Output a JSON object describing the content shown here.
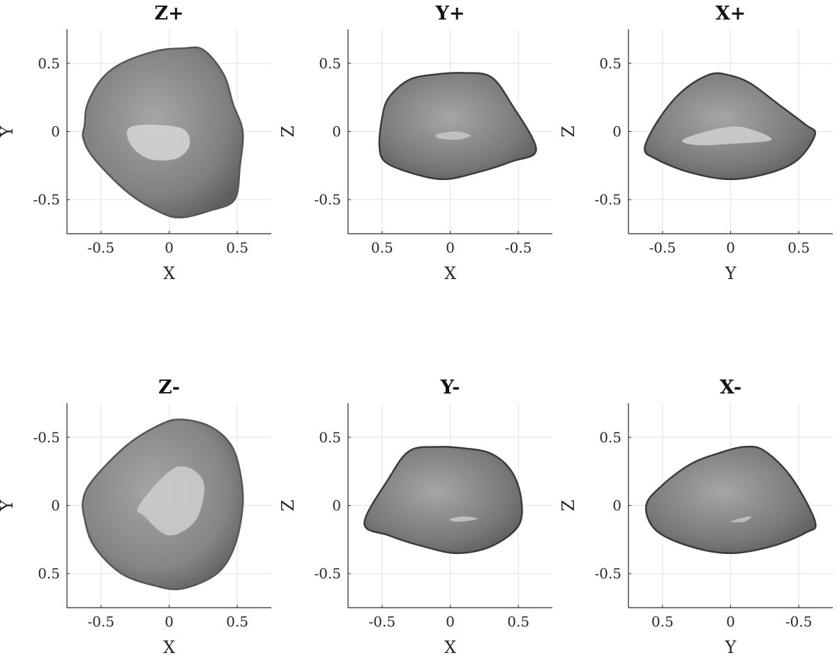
{
  "chart_data": [
    {
      "type": "shape-projection",
      "title": "Z+",
      "xlabel": "X",
      "ylabel": "Y",
      "xlim": [
        -0.75,
        0.75
      ],
      "ylim": [
        -0.75,
        0.75
      ],
      "x_reversed": false,
      "y_reversed": false,
      "xticks": [
        -0.5,
        0,
        0.5
      ],
      "xtick_labels": [
        "-0.5",
        "0",
        "0.5"
      ],
      "yticks": [
        0.5,
        0,
        -0.5
      ],
      "ytick_labels": [
        "0.5",
        "0",
        "-0.5"
      ],
      "grid": true,
      "outline": [
        [
          -0.62,
          0.05
        ],
        [
          -0.6,
          0.2
        ],
        [
          -0.5,
          0.38
        ],
        [
          -0.35,
          0.5
        ],
        [
          -0.1,
          0.59
        ],
        [
          0.1,
          0.61
        ],
        [
          0.25,
          0.6
        ],
        [
          0.4,
          0.42
        ],
        [
          0.47,
          0.2
        ],
        [
          0.54,
          0.0
        ],
        [
          0.52,
          -0.25
        ],
        [
          0.48,
          -0.5
        ],
        [
          0.3,
          -0.58
        ],
        [
          0.1,
          -0.63
        ],
        [
          -0.05,
          -0.6
        ],
        [
          -0.3,
          -0.45
        ],
        [
          -0.55,
          -0.2
        ],
        [
          -0.63,
          -0.05
        ]
      ],
      "highlight": [
        [
          -0.3,
          0.02
        ],
        [
          -0.15,
          0.05
        ],
        [
          0.1,
          0.02
        ],
        [
          0.15,
          -0.1
        ],
        [
          0.05,
          -0.2
        ],
        [
          -0.15,
          -0.2
        ],
        [
          -0.28,
          -0.1
        ]
      ],
      "body_color": "#808080",
      "highlight_color": "#d6d6d6",
      "edge_color": "#555555"
    },
    {
      "type": "shape-projection",
      "title": "Y+",
      "xlabel": "X",
      "ylabel": "Z",
      "xlim": [
        -0.75,
        0.75
      ],
      "ylim": [
        -0.75,
        0.75
      ],
      "x_reversed": true,
      "y_reversed": false,
      "xticks": [
        0.5,
        0,
        -0.5
      ],
      "xtick_labels": [
        "0.5",
        "0",
        "-0.5"
      ],
      "yticks": [
        0.5,
        0,
        -0.5
      ],
      "ytick_labels": [
        "0.5",
        "0",
        "-0.5"
      ],
      "grid": true,
      "outline": [
        [
          0.5,
          0.1
        ],
        [
          0.45,
          0.25
        ],
        [
          0.3,
          0.38
        ],
        [
          0.1,
          0.42
        ],
        [
          -0.1,
          0.43
        ],
        [
          -0.3,
          0.4
        ],
        [
          -0.45,
          0.2
        ],
        [
          -0.63,
          -0.13
        ],
        [
          -0.45,
          -0.22
        ],
        [
          -0.2,
          -0.3
        ],
        [
          0.05,
          -0.35
        ],
        [
          0.3,
          -0.3
        ],
        [
          0.48,
          -0.22
        ],
        [
          0.52,
          -0.1
        ]
      ],
      "highlight": [
        [
          0.1,
          -0.02
        ],
        [
          -0.05,
          0.0
        ],
        [
          -0.15,
          -0.03
        ],
        [
          -0.05,
          -0.06
        ],
        [
          0.08,
          -0.05
        ]
      ],
      "body_color": "#7a7a7a",
      "highlight_color": "#c8c8c8",
      "edge_color": "#3a3a3a"
    },
    {
      "type": "shape-projection",
      "title": "X+",
      "xlabel": "Y",
      "ylabel": "Z",
      "xlim": [
        -0.75,
        0.75
      ],
      "ylim": [
        -0.75,
        0.75
      ],
      "x_reversed": false,
      "y_reversed": false,
      "xticks": [
        -0.5,
        0,
        0.5
      ],
      "xtick_labels": [
        "-0.5",
        "0",
        "0.5"
      ],
      "yticks": [
        0.5,
        0,
        -0.5
      ],
      "ytick_labels": [
        "0.5",
        "0",
        "-0.5"
      ],
      "grid": true,
      "outline": [
        [
          -0.63,
          -0.12
        ],
        [
          -0.52,
          0.1
        ],
        [
          -0.35,
          0.3
        ],
        [
          -0.15,
          0.42
        ],
        [
          0.0,
          0.41
        ],
        [
          0.15,
          0.35
        ],
        [
          0.35,
          0.2
        ],
        [
          0.55,
          0.05
        ],
        [
          0.62,
          -0.02
        ],
        [
          0.5,
          -0.2
        ],
        [
          0.3,
          -0.3
        ],
        [
          0.0,
          -0.35
        ],
        [
          -0.3,
          -0.3
        ],
        [
          -0.55,
          -0.2
        ]
      ],
      "highlight": [
        [
          -0.35,
          -0.06
        ],
        [
          -0.1,
          0.02
        ],
        [
          0.1,
          0.03
        ],
        [
          0.3,
          -0.06
        ],
        [
          0.0,
          -0.09
        ],
        [
          -0.25,
          -0.1
        ]
      ],
      "body_color": "#7a7a7a",
      "highlight_color": "#d0d0d0",
      "edge_color": "#3a3a3a"
    },
    {
      "type": "shape-projection",
      "title": "Z-",
      "xlabel": "X",
      "ylabel": "Y",
      "xlim": [
        -0.75,
        0.75
      ],
      "ylim": [
        -0.75,
        0.75
      ],
      "x_reversed": false,
      "y_reversed": true,
      "xticks": [
        -0.5,
        0,
        0.5
      ],
      "xtick_labels": [
        "-0.5",
        "0",
        "0.5"
      ],
      "yticks": [
        -0.5,
        0,
        0.5
      ],
      "ytick_labels": [
        "-0.5",
        "0",
        "0.5"
      ],
      "grid": true,
      "outline": [
        [
          -0.63,
          -0.05
        ],
        [
          -0.55,
          -0.2
        ],
        [
          -0.3,
          -0.45
        ],
        [
          -0.05,
          -0.6
        ],
        [
          0.1,
          -0.63
        ],
        [
          0.3,
          -0.58
        ],
        [
          0.45,
          -0.45
        ],
        [
          0.52,
          -0.25
        ],
        [
          0.54,
          0.0
        ],
        [
          0.48,
          0.3
        ],
        [
          0.35,
          0.5
        ],
        [
          0.1,
          0.61
        ],
        [
          -0.1,
          0.59
        ],
        [
          -0.35,
          0.5
        ],
        [
          -0.55,
          0.3
        ],
        [
          -0.62,
          0.1
        ]
      ],
      "highlight": [
        [
          -0.22,
          0.0
        ],
        [
          0.05,
          -0.28
        ],
        [
          0.25,
          -0.18
        ],
        [
          0.2,
          0.1
        ],
        [
          0.0,
          0.22
        ],
        [
          -0.18,
          0.08
        ]
      ],
      "body_color": "#858585",
      "highlight_color": "#cfcfcf",
      "edge_color": "#555555"
    },
    {
      "type": "shape-projection",
      "title": "Y-",
      "xlabel": "X",
      "ylabel": "Z",
      "xlim": [
        -0.75,
        0.75
      ],
      "ylim": [
        -0.75,
        0.75
      ],
      "x_reversed": false,
      "y_reversed": false,
      "xticks": [
        -0.5,
        0,
        0.5
      ],
      "xtick_labels": [
        "-0.5",
        "0",
        "0.5"
      ],
      "yticks": [
        0.5,
        0,
        -0.5
      ],
      "ytick_labels": [
        "0.5",
        "0",
        "-0.5"
      ],
      "grid": true,
      "outline": [
        [
          -0.63,
          -0.13
        ],
        [
          -0.45,
          0.2
        ],
        [
          -0.3,
          0.4
        ],
        [
          -0.1,
          0.43
        ],
        [
          0.1,
          0.42
        ],
        [
          0.3,
          0.38
        ],
        [
          0.45,
          0.25
        ],
        [
          0.52,
          0.05
        ],
        [
          0.5,
          -0.15
        ],
        [
          0.3,
          -0.3
        ],
        [
          0.05,
          -0.35
        ],
        [
          -0.2,
          -0.3
        ],
        [
          -0.45,
          -0.22
        ]
      ],
      "highlight": [
        [
          0.0,
          -0.1
        ],
        [
          0.1,
          -0.08
        ],
        [
          0.2,
          -0.1
        ],
        [
          0.05,
          -0.12
        ]
      ],
      "body_color": "#7a7a7a",
      "highlight_color": "#c8c8c8",
      "edge_color": "#3a3a3a"
    },
    {
      "type": "shape-projection",
      "title": "X-",
      "xlabel": "Y",
      "ylabel": "Z",
      "xlim": [
        -0.75,
        0.75
      ],
      "ylim": [
        -0.75,
        0.75
      ],
      "x_reversed": true,
      "y_reversed": false,
      "xticks": [
        0.5,
        0,
        -0.5
      ],
      "xtick_labels": [
        "0.5",
        "0",
        "-0.5"
      ],
      "yticks": [
        0.5,
        0,
        -0.5
      ],
      "ytick_labels": [
        "0.5",
        "0",
        "-0.5"
      ],
      "grid": true,
      "outline": [
        [
          0.62,
          0.0
        ],
        [
          0.5,
          0.15
        ],
        [
          0.3,
          0.3
        ],
        [
          0.1,
          0.38
        ],
        [
          -0.1,
          0.43
        ],
        [
          -0.25,
          0.4
        ],
        [
          -0.45,
          0.2
        ],
        [
          -0.62,
          -0.12
        ],
        [
          -0.55,
          -0.2
        ],
        [
          -0.3,
          -0.3
        ],
        [
          0.0,
          -0.35
        ],
        [
          0.3,
          -0.3
        ],
        [
          0.55,
          -0.18
        ]
      ],
      "highlight": [
        [
          0.0,
          -0.12
        ],
        [
          -0.05,
          -0.1
        ],
        [
          -0.15,
          -0.08
        ],
        [
          -0.1,
          -0.12
        ]
      ],
      "body_color": "#7a7a7a",
      "highlight_color": "#c4c4c4",
      "edge_color": "#3a3a3a"
    }
  ]
}
